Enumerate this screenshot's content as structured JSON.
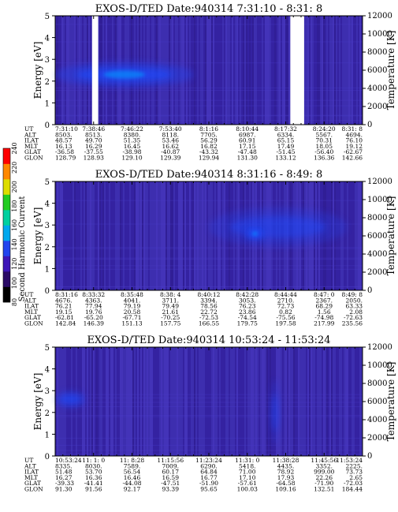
{
  "colorbar": {
    "label": "Second Harmonic Current",
    "ticks": [
      "80",
      "100",
      "120",
      "140",
      "160",
      "180",
      "200",
      "220",
      "240"
    ],
    "colors": [
      "#000000",
      "#2a0a66",
      "#3d16b8",
      "#2244ee",
      "#00a8ee",
      "#00d0a0",
      "#22cc22",
      "#dddd00",
      "#ff8800",
      "#ff0000"
    ]
  },
  "chart_data": [
    {
      "type": "heatmap",
      "title": "EXOS-D/TED   Date:940314  7:31:10 - 8:31: 8",
      "ylabel": "Energy [eV]",
      "y2label": "Temperature [K]",
      "ylim": [
        0,
        5
      ],
      "yticks": [
        "0",
        "1",
        "2",
        "3",
        "4",
        "5"
      ],
      "y2lim": [
        0,
        12000
      ],
      "y2ticks": [
        "0",
        "2000",
        "4000",
        "6000",
        "8000",
        "10000",
        "12000"
      ],
      "data_gaps": [
        [
          0.12,
          0.14
        ],
        [
          0.765,
          0.81
        ]
      ],
      "enhancements": [
        {
          "x": [
            0.0,
            0.45
          ],
          "y": [
            1.7,
            2.9
          ],
          "strength": 0.9
        }
      ],
      "table": {
        "row_labels": [
          "UT",
          "ALT",
          "ILAT",
          "MLT",
          "GLAT",
          "GLON"
        ],
        "columns": [
          [
            "7:31:10",
            "8503.",
            "48.57",
            "16.13",
            "-36.58",
            "128.79"
          ],
          [
            "7:38:46",
            "8513.",
            "49.70",
            "16.29",
            "-37.55",
            "128.93"
          ],
          [
            "7:46:22",
            "8380.",
            "51.35",
            "16.45",
            "-38.98",
            "129.10"
          ],
          [
            "7:53:40",
            "8118.",
            "53.46",
            "16.62",
            "-40.87",
            "129.39"
          ],
          [
            "8:1:16",
            "7705.",
            "56.29",
            "16.82",
            "-43.32",
            "129.94"
          ],
          [
            "8:10:44",
            "6987.",
            "60.91",
            "17.15",
            "-47.48",
            "131.30"
          ],
          [
            "8:17:32",
            "6334.",
            "65.15",
            "17.49",
            "-51.45",
            "133.12"
          ],
          [
            "8:24:20",
            "5567.",
            "70.31",
            "18.05",
            "-56.40",
            "136.36"
          ],
          [
            "8:31: 8",
            "4694.",
            "76.10",
            "19.12",
            "-62.67",
            "142.66"
          ]
        ]
      }
    },
    {
      "type": "heatmap",
      "title": "EXOS-D/TED   Date:940314  8:31:16 - 8:49: 8",
      "ylabel": "Energy [eV]",
      "y2label": "Temperature [K]",
      "ylim": [
        0,
        5
      ],
      "yticks": [
        "0",
        "1",
        "2",
        "3",
        "4",
        "5"
      ],
      "y2lim": [
        0,
        12000
      ],
      "y2ticks": [
        "0",
        "2000",
        "4000",
        "6000",
        "8000",
        "10000",
        "12000"
      ],
      "data_gaps": [],
      "enhancements": [
        {
          "x": [
            0.5,
            0.95
          ],
          "y": [
            2.0,
            3.8
          ],
          "strength": 0.6
        },
        {
          "x": [
            0.62,
            0.68
          ],
          "y": [
            2.3,
            2.9
          ],
          "strength": 1.0
        }
      ],
      "table": {
        "row_labels": [
          "UT",
          "ALT",
          "ILAT",
          "MLT",
          "GLAT",
          "GLON"
        ],
        "columns": [
          [
            "8:31:16",
            "4676.",
            "76.21",
            "19.15",
            "-62.81",
            "142.84"
          ],
          [
            "8:33:32",
            "4363.",
            "77.94",
            "19.76",
            "-65.20",
            "146.39"
          ],
          [
            "8:35:48",
            "4041.",
            "79.19",
            "20.58",
            "-67.71",
            "151.13"
          ],
          [
            "8:38: 4",
            "3711.",
            "79.49",
            "21.61",
            "-70.25",
            "157.75"
          ],
          [
            "8:40:12",
            "3394.",
            "78.56",
            "22.72",
            "-72.53",
            "166.55"
          ],
          [
            "8:42:28",
            "3053.",
            "76.23",
            "23.86",
            "-74.54",
            "179.75"
          ],
          [
            "8:44:44",
            "2710.",
            "72.73",
            "0.82",
            "-75.56",
            "197.58"
          ],
          [
            "8:47: 0",
            "2367.",
            "68.29",
            "1.56",
            "-74.98",
            "217.99"
          ],
          [
            "8:49: 8",
            "2050.",
            "63.33",
            "2.08",
            "-72.63",
            "235.56"
          ]
        ]
      }
    },
    {
      "type": "heatmap",
      "title": "EXOS-D/TED   Date:940314  10:53:24 - 11:53:24",
      "ylabel": "Energy [eV]",
      "y2label": "Temperature [K]",
      "ylim": [
        0,
        5
      ],
      "yticks": [
        "0",
        "1",
        "2",
        "3",
        "4",
        "5"
      ],
      "y2lim": [
        0,
        12000
      ],
      "y2ticks": [
        "0",
        "2000",
        "4000",
        "6000",
        "8000",
        "10000",
        "12000"
      ],
      "data_gaps": [],
      "enhancements": [
        {
          "x": [
            0.0,
            0.1
          ],
          "y": [
            2.2,
            3.0
          ],
          "strength": 0.8
        },
        {
          "x": [
            0.7,
            0.73
          ],
          "y": [
            0.5,
            3.5
          ],
          "strength": 0.55
        }
      ],
      "table": {
        "row_labels": [
          "UT",
          "ALT",
          "ILAT",
          "MLT",
          "GLAT",
          "GLON"
        ],
        "columns": [
          [
            "10:53:24",
            "8335.",
            "51.48",
            "16.27",
            "-39.33",
            "91.30"
          ],
          [
            "11: 1: 0",
            "8030.",
            "53.70",
            "16.36",
            "-41.41",
            "91.56"
          ],
          [
            "11: 8:28",
            "7589.",
            "56.54",
            "16.46",
            "-44.08",
            "92.17"
          ],
          [
            "11:15:56",
            "7009.",
            "60.17",
            "16.59",
            "-47.51",
            "93.39"
          ],
          [
            "11:23:24",
            "6290.",
            "64.84",
            "16.77",
            "-51.90",
            "95.65"
          ],
          [
            "11:31: 0",
            "5418.",
            "71.00",
            "17.10",
            "-57.61",
            "100.03"
          ],
          [
            "11:38:28",
            "4435.",
            "78.92",
            "17.93",
            "-64.58",
            "109.16"
          ],
          [
            "11:45:56",
            "3352.",
            "999.00",
            "22.26",
            "-71.90",
            "132.51"
          ],
          [
            "11:53:24",
            "2225.",
            "73.73",
            "2.65",
            "-72.03",
            "184.44"
          ]
        ]
      }
    }
  ]
}
